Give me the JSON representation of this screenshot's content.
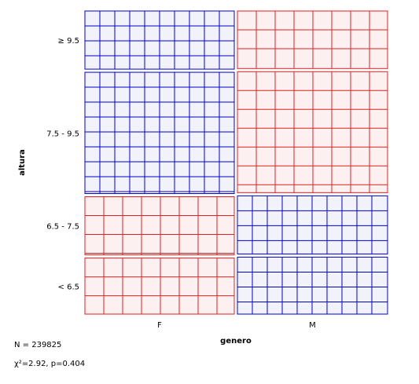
{
  "chart_data": {
    "type": "mosaic",
    "xlabel": "genero",
    "ylabel": "altura",
    "x_categories": [
      "F",
      "M"
    ],
    "y_categories": [
      "≥ 9.5",
      "7.5 - 9.5",
      "6.5 - 7.5",
      "< 6.5"
    ],
    "column_fractions": [
      0.5,
      0.5
    ],
    "cell_fractions": {
      "F": [
        0.198,
        0.413,
        0.198,
        0.191
      ],
      "M": [
        0.196,
        0.412,
        0.198,
        0.194
      ]
    },
    "cell_residual_sign": {
      "F": [
        "positive",
        "positive",
        "negative",
        "negative"
      ],
      "M": [
        "negative",
        "negative",
        "positive",
        "positive"
      ]
    },
    "colors": {
      "positive_stroke": "#0000cc",
      "positive_fill": "#f2f2fb",
      "negative_stroke": "#e02020",
      "negative_fill": "#fdf0f0"
    }
  },
  "stats": {
    "n_label": "N = 239825",
    "chi_label": "χ²=2.92, p=0.404"
  }
}
